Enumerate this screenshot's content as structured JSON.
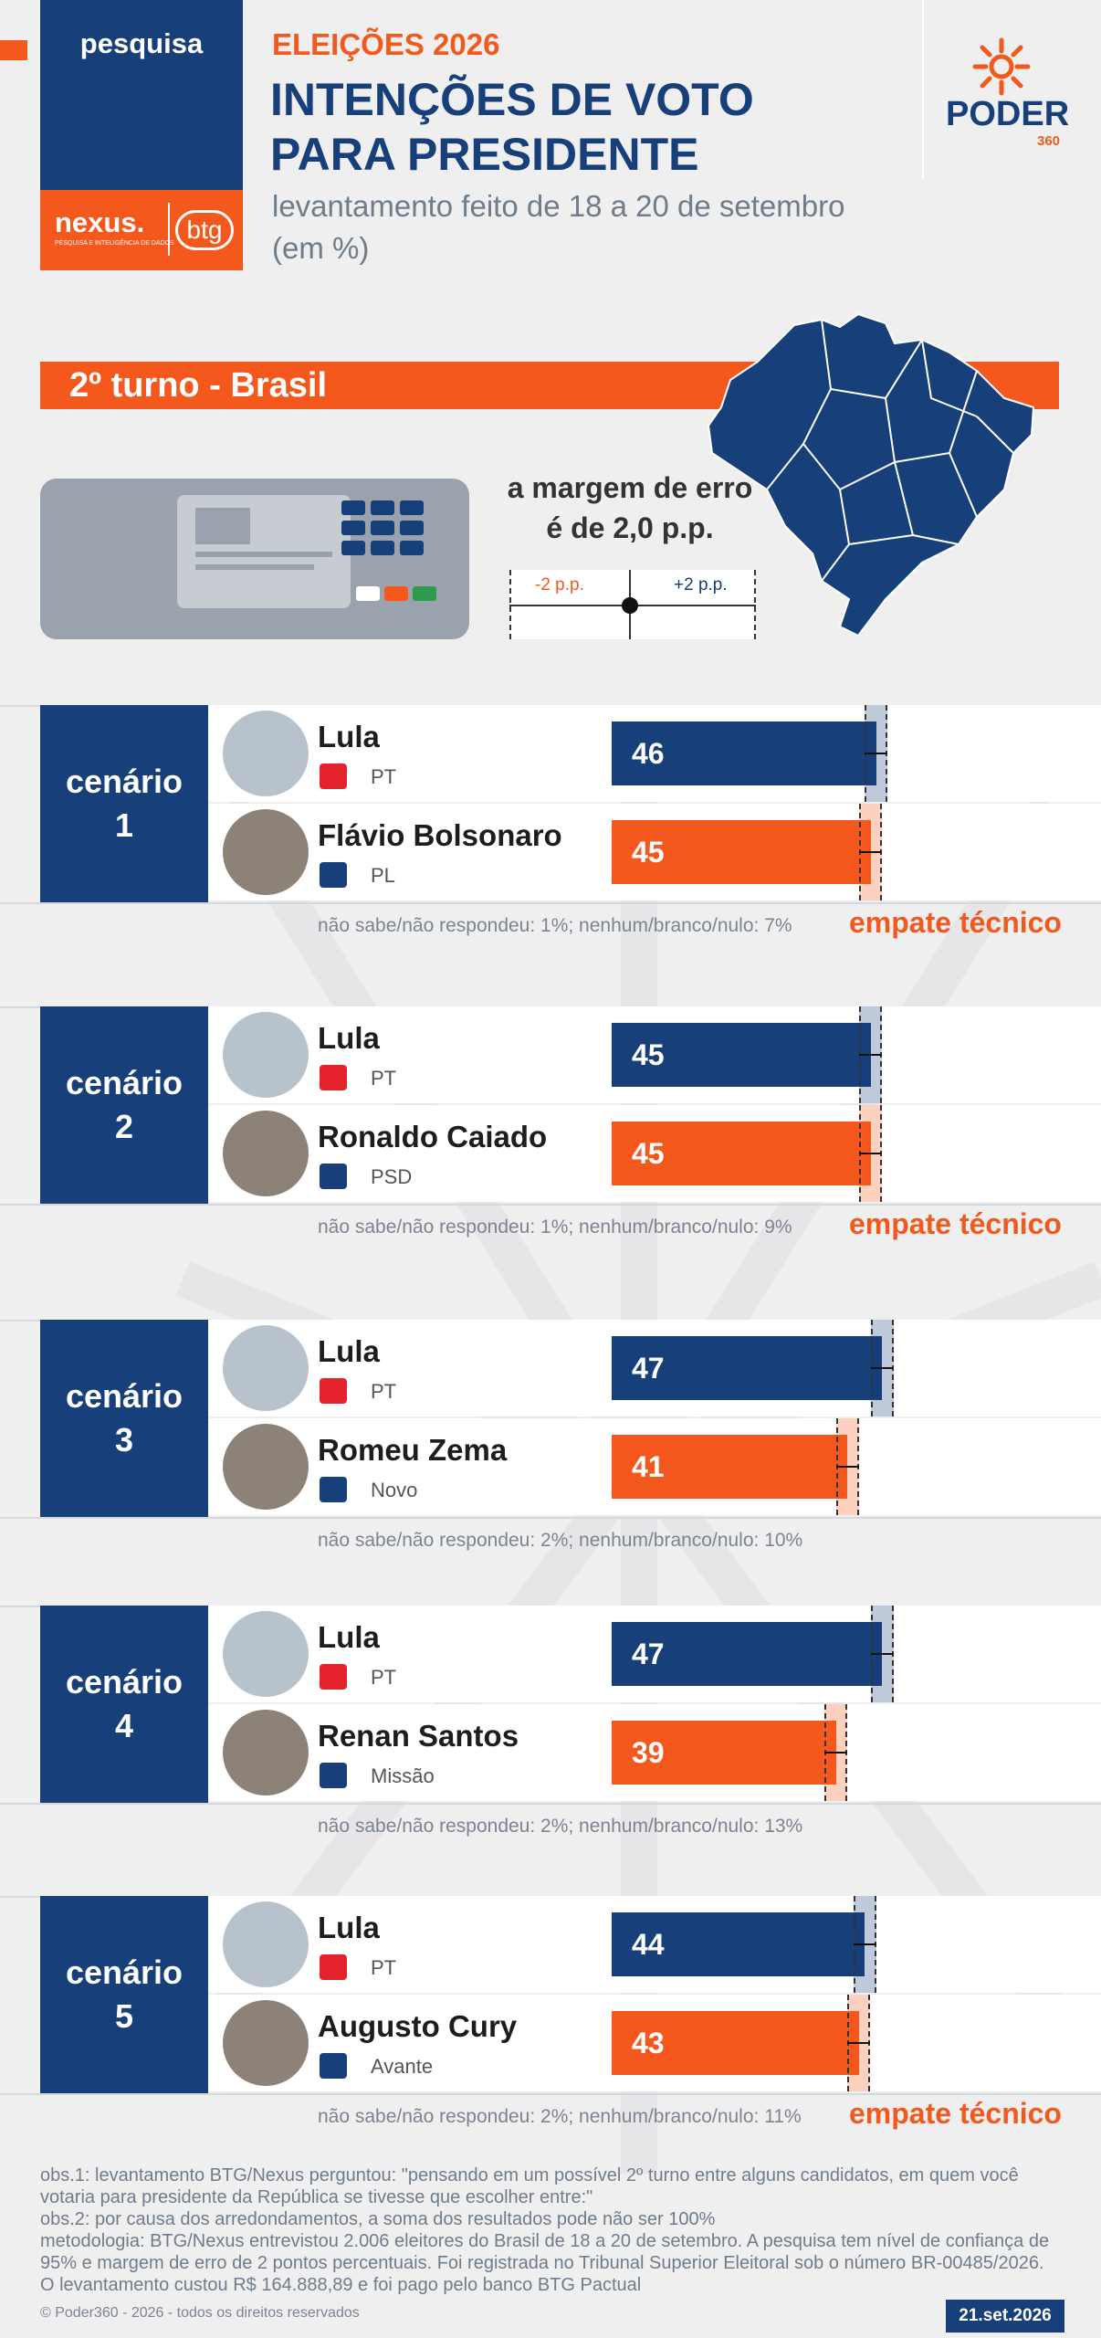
{
  "header": {
    "pesquisa": "pesquisa",
    "eyebrow": "ELEIÇÕES 2026",
    "title_line1": "INTENÇÕES DE VOTO",
    "title_line2": "PARA PRESIDENTE",
    "subtitle_line1": "levantamento feito de 18 a 20 de setembro",
    "subtitle_line2": "(em %)",
    "nexus": "nexus.",
    "nexus_tag": "PESQUISA E INTELIGÊNCIA DE DADOS",
    "btg": "btg",
    "poder": "PODER",
    "poder_num": "360"
  },
  "section": {
    "label": "2º turno - Brasil",
    "margin_line1": "a margem de erro",
    "margin_line2": "é de 2,0 p.p.",
    "minus": "-2 p.p.",
    "plus": "+2 p.p."
  },
  "colors": {
    "navy": "#173f79",
    "orange": "#f4581c"
  },
  "chart_data": [
    {
      "type": "bar",
      "scenario": "cenário",
      "num": "1",
      "categories": [
        "Lula",
        "Flávio Bolsonaro"
      ],
      "parties": [
        "PT",
        "PL"
      ],
      "values": [
        46,
        45
      ],
      "note": "não sabe/não respondeu: 1%; nenhum/branco/nulo: 7%",
      "tie": "empate técnico"
    },
    {
      "type": "bar",
      "scenario": "cenário",
      "num": "2",
      "categories": [
        "Lula",
        "Ronaldo Caiado"
      ],
      "parties": [
        "PT",
        "PSD"
      ],
      "values": [
        45,
        45
      ],
      "note": "não sabe/não respondeu: 1%; nenhum/branco/nulo: 9%",
      "tie": "empate técnico"
    },
    {
      "type": "bar",
      "scenario": "cenário",
      "num": "3",
      "categories": [
        "Lula",
        "Romeu Zema"
      ],
      "parties": [
        "PT",
        "Novo"
      ],
      "values": [
        47,
        41
      ],
      "note": "não sabe/não respondeu: 2%; nenhum/branco/nulo: 10%",
      "tie": ""
    },
    {
      "type": "bar",
      "scenario": "cenário",
      "num": "4",
      "categories": [
        "Lula",
        "Renan Santos"
      ],
      "parties": [
        "PT",
        "Missão"
      ],
      "values": [
        47,
        39
      ],
      "note": "não sabe/não respondeu: 2%; nenhum/branco/nulo: 13%",
      "tie": ""
    },
    {
      "type": "bar",
      "scenario": "cenário",
      "num": "5",
      "categories": [
        "Lula",
        "Augusto Cury"
      ],
      "parties": [
        "PT",
        "Avante"
      ],
      "values": [
        44,
        43
      ],
      "note": "não sabe/não respondeu: 2%; nenhum/branco/nulo: 11%",
      "tie": "empate técnico"
    }
  ],
  "footer": {
    "obs1": "obs.1: levantamento BTG/Nexus perguntou: \"pensando em um possível 2º turno entre alguns candidatos, em quem você votaria para presidente da República se tivesse que escolher entre:\"",
    "obs2": "obs.2: por causa dos arredondamentos, a soma dos resultados pode não ser 100%",
    "metodologia": "metodologia: BTG/Nexus entrevistou 2.006 eleitores do Brasil de 18 a 20 de setembro. A pesquisa tem nível de confiança de 95% e margem de erro de 2 pontos percentuais. Foi registrada no Tribunal Superior Eleitoral sob o número BR-00485/2026. O levantamento custou R$ 164.888,89 e foi pago pelo banco BTG Pactual",
    "copyright": "© Poder360 - 2026 - todos os direitos reservados",
    "date": "21.set.2026"
  }
}
